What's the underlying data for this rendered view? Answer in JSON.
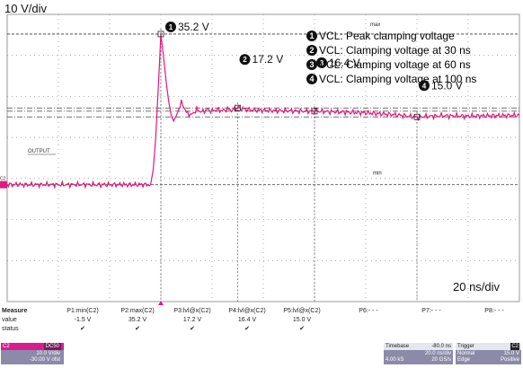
{
  "scales": {
    "vertical": "10 V/div",
    "horizontal": "20 ns/div"
  },
  "legend": [
    {
      "num": "1",
      "text": "VCL: Peak clamping  voltage"
    },
    {
      "num": "2",
      "text": "VCL: Clamping voltage at 30 ns"
    },
    {
      "num": "3",
      "text": "VCL: Clamping voltage at 60 ns"
    },
    {
      "num": "4",
      "text": "VCL: Clamping voltage at 100 ns"
    }
  ],
  "trace_label": "OUTPUT",
  "channel_marker": "C2",
  "cursor_labels": {
    "max": "max",
    "min": "min"
  },
  "colors": {
    "trace": "#e0197d",
    "grid": "#8a8a8a",
    "panel": "#8c8aa8",
    "channel": "#d61f8f"
  },
  "chart_data": {
    "type": "line",
    "title": "",
    "xlabel": "",
    "ylabel": "",
    "x_unit": "ns",
    "y_unit": "V",
    "xlim": [
      -60,
      140
    ],
    "ylim": [
      -30,
      40
    ],
    "series": [
      {
        "name": "OUTPUT",
        "x": [
          -60,
          -4,
          -3,
          -2,
          -1,
          0,
          1,
          2,
          3,
          4,
          5,
          6,
          7,
          8,
          9,
          10,
          12,
          14,
          16,
          18,
          20,
          22,
          24,
          26,
          28,
          30,
          35,
          40,
          45,
          50,
          55,
          60,
          65,
          70,
          80,
          90,
          100,
          110,
          120,
          130,
          140
        ],
        "y": [
          -1.5,
          -1.5,
          2,
          10,
          22,
          35.2,
          30,
          24,
          19,
          15.5,
          14,
          15,
          17,
          18.5,
          17.5,
          16,
          15.5,
          16.8,
          16.2,
          16.8,
          16.4,
          16.8,
          16.5,
          16.9,
          16.6,
          17.2,
          16.7,
          16.6,
          16.5,
          16.5,
          16.4,
          16.4,
          16.3,
          16.2,
          16,
          15.6,
          15.0,
          15.3,
          15.2,
          15.3,
          15.4
        ]
      }
    ],
    "markers": [
      {
        "num": "1",
        "x": 0,
        "y": 35.2,
        "label": "35.2 V"
      },
      {
        "num": "2",
        "x": 30,
        "y": 17.2,
        "label": "17.2 V"
      },
      {
        "num": "3",
        "x": 60,
        "y": 16.4,
        "label": "16.4 V"
      },
      {
        "num": "4",
        "x": 100,
        "y": 15.0,
        "label": "15.0 V"
      }
    ],
    "cursors": {
      "max": 35.2,
      "min": -1.5
    },
    "grid": true
  },
  "measure": {
    "row_labels": [
      "Measure",
      "value",
      "status"
    ],
    "columns": [
      {
        "name": "P1:min(C2)",
        "value": "-1.5 V",
        "status": "✔"
      },
      {
        "name": "P2:max(C2)",
        "value": "35.2 V",
        "status": "✔"
      },
      {
        "name": "P3:lvl@x(C2)",
        "value": "17.2 V",
        "status": "✔"
      },
      {
        "name": "P4:lvl@x(C2)",
        "value": "16.4 V",
        "status": "✔"
      },
      {
        "name": "P5:lvl@x(C2)",
        "value": "15.0 V",
        "status": "✔"
      },
      {
        "name": "P6:- - -",
        "value": "",
        "status": ""
      },
      {
        "name": "P7:- - -",
        "value": "",
        "status": ""
      },
      {
        "name": "P8:- - -",
        "value": "",
        "status": ""
      }
    ]
  },
  "channel_box": {
    "name": "C2",
    "tag": "DC50",
    "vdiv": "10.0 V/div",
    "offset": "-30.00 V ofst"
  },
  "timebase": {
    "label": "Timebase",
    "delay": "-80.0 ns",
    "rate_a": "20.0 ns/div",
    "samples": "4.00 kS",
    "rate_b": "20 GS/s"
  },
  "trigger": {
    "label": "Trigger",
    "channel": "C2",
    "mode": "Normal",
    "level": "15.0 V",
    "type": "Edge",
    "slope": "Positive"
  }
}
